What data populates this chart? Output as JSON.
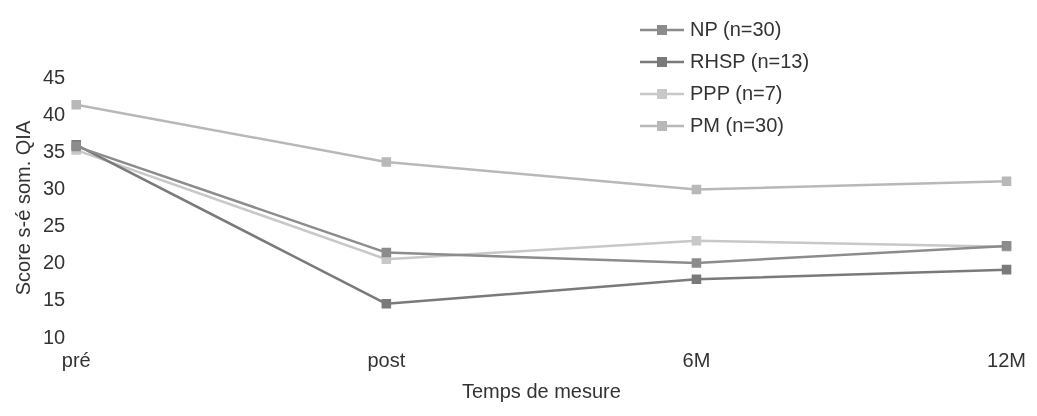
{
  "chart_data": {
    "type": "line",
    "xlabel": "Temps de mesure",
    "ylabel": "Score s-é som. QIA",
    "categories": [
      "pré",
      "post",
      "6M",
      "12M"
    ],
    "series": [
      {
        "name": "NP (n=30)",
        "color": "#8c8c8c",
        "values": [
          35.8,
          21.5,
          20.1,
          22.4
        ]
      },
      {
        "name": "RHSP (n=13)",
        "color": "#7a7a7a",
        "values": [
          36,
          14.6,
          17.9,
          19.2
        ]
      },
      {
        "name": "PPP (n=7)",
        "color": "#c8c8c8",
        "values": [
          35.3,
          20.6,
          23.1,
          22.3
        ]
      },
      {
        "name": "PM (n=30)",
        "color": "#b8b8b8",
        "values": [
          41.4,
          33.7,
          30,
          31.1
        ]
      }
    ],
    "ylim": [
      10,
      45
    ],
    "yticks": [
      10,
      15,
      20,
      25,
      30,
      35,
      40,
      45
    ],
    "grid": false,
    "legend": "top right",
    "marker": "square",
    "line_style": "solid"
  }
}
